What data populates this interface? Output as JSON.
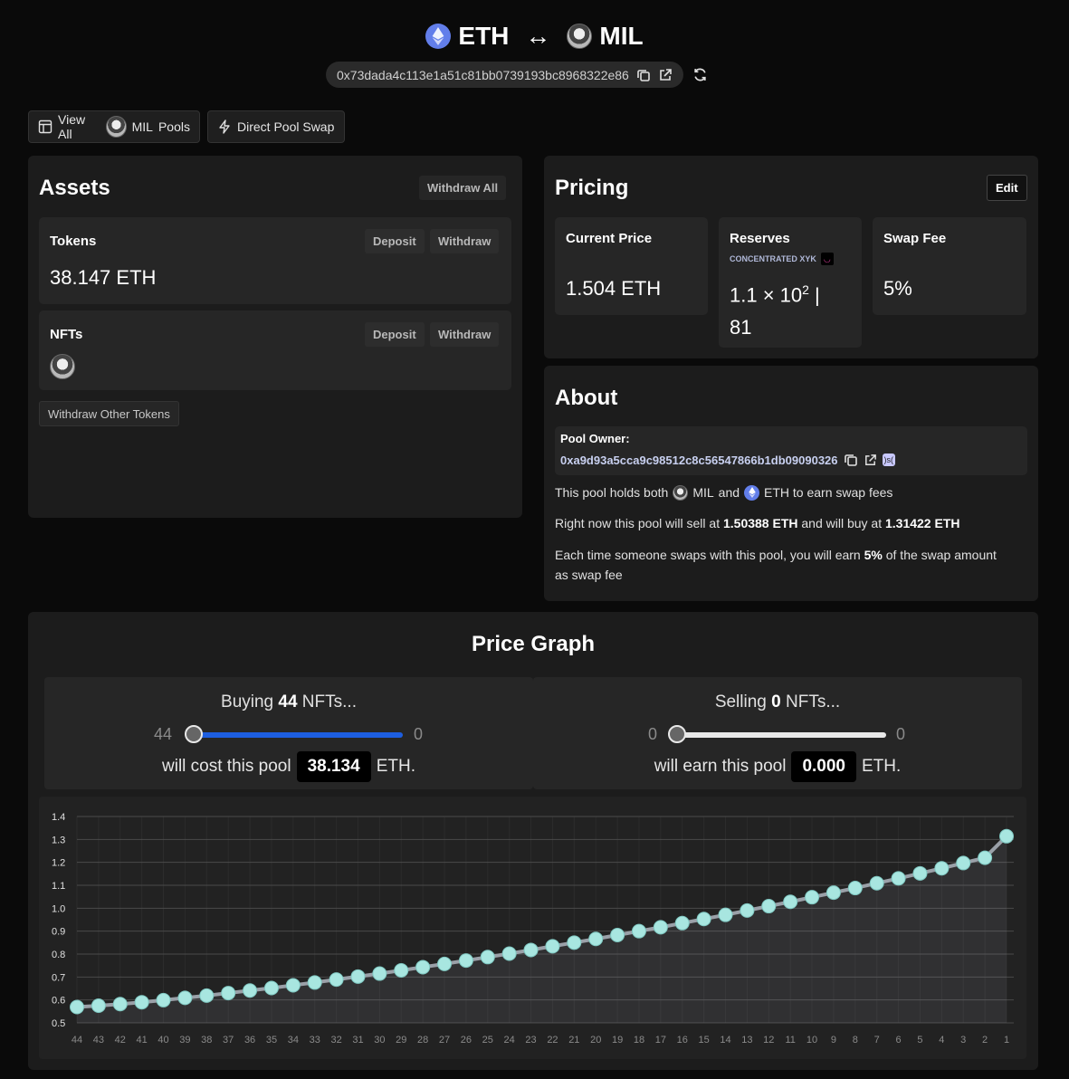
{
  "header": {
    "token_a": "ETH",
    "arrow": "↔",
    "token_b": "MIL",
    "address": "0x73dada4c113e1a51c81bb0739193bc8968322e86"
  },
  "toolbar": {
    "view_all_prefix": "View All",
    "view_all_token": "MIL",
    "view_all_suffix": "Pools",
    "direct_swap": "Direct Pool Swap"
  },
  "assets": {
    "title": "Assets",
    "withdraw_all": "Withdraw All",
    "tokens_label": "Tokens",
    "tokens_value": "38.147 ETH",
    "deposit": "Deposit",
    "withdraw": "Withdraw",
    "nfts_label": "NFTs",
    "withdraw_other": "Withdraw Other Tokens"
  },
  "pricing": {
    "title": "Pricing",
    "edit": "Edit",
    "current_price_label": "Current Price",
    "current_price": "1.504 ETH",
    "reserves_label": "Reserves",
    "curve": "CONCENTRATED XYK",
    "reserves_line1": "1.1 × 10",
    "reserves_exp": "2",
    "reserves_sep": " |",
    "reserves_line2": "81",
    "swap_fee_label": "Swap Fee",
    "swap_fee": "5%"
  },
  "about": {
    "title": "About",
    "owner_label": "Pool Owner:",
    "owner_address": "0xa9d93a5cca9c98512c8c56547866b1db09090326",
    "owner_badge": ")s(",
    "holds_prefix": "This pool holds  both",
    "holds_mil": "MIL",
    "holds_and": "and",
    "holds_eth": "ETH to earn swap fees",
    "sell_prefix": "Right now this pool will sell at ",
    "sell_price": "1.50388 ETH",
    "buy_mid": " and will buy at ",
    "buy_price": "1.31422 ETH",
    "fee_prefix": "Each time someone swaps with this pool, you will earn ",
    "fee_value": "5%",
    "fee_suffix": " of the swap amount as swap fee"
  },
  "graph": {
    "title": "Price Graph",
    "buy": {
      "prefix": "Buying ",
      "count": "44",
      "suffix": " NFTs...",
      "min_label": "44",
      "max_label": "0",
      "fill": 1.0,
      "cost_prefix": "will cost this pool",
      "cost_value": "38.134",
      "unit": "ETH."
    },
    "sell": {
      "prefix": "Selling ",
      "count": "0",
      "suffix": " NFTs...",
      "min_label": "0",
      "max_label": "0",
      "fill": 0.0,
      "earn_prefix": "will earn this pool",
      "earn_value": "0.000",
      "unit": "ETH."
    }
  },
  "colors": {
    "buy_track": "#1d5ee0",
    "sell_track": "#e8e8e8",
    "point": "#a8e6e0",
    "line": "#9aa0a8",
    "eth": "#627eea"
  },
  "chart_data": {
    "type": "line",
    "x": [
      44,
      43,
      42,
      41,
      40,
      39,
      38,
      37,
      36,
      35,
      34,
      33,
      32,
      31,
      30,
      29,
      28,
      27,
      26,
      25,
      24,
      23,
      22,
      21,
      20,
      19,
      18,
      17,
      16,
      15,
      14,
      13,
      12,
      11,
      10,
      9,
      8,
      7,
      6,
      5,
      4,
      3,
      2,
      1
    ],
    "series": [
      {
        "values": [
          0.569,
          0.575,
          0.582,
          0.59,
          0.599,
          0.609,
          0.619,
          0.63,
          0.641,
          0.652,
          0.664,
          0.676,
          0.689,
          0.702,
          0.715,
          0.729,
          0.743,
          0.757,
          0.772,
          0.787,
          0.802,
          0.818,
          0.834,
          0.85,
          0.866,
          0.883,
          0.9,
          0.917,
          0.935,
          0.953,
          0.971,
          0.99,
          1.009,
          1.028,
          1.048,
          1.068,
          1.088,
          1.109,
          1.13,
          1.152,
          1.174,
          1.197,
          1.22,
          1.314
        ]
      }
    ],
    "yticks": [
      "1.4",
      "1.3",
      "1.2",
      "1.1",
      "1.0",
      "0.9",
      "0.8",
      "0.7",
      "0.6",
      "0.5"
    ],
    "ylim": [
      0.5,
      1.4
    ],
    "grid": true
  }
}
